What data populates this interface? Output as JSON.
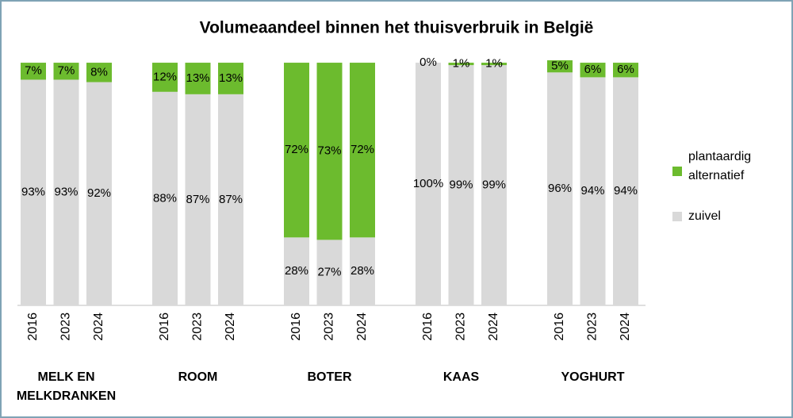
{
  "chart_data": {
    "type": "stacked_bar",
    "title": "Volumeaandeel binnen het thuisverbruik in België",
    "categories": [
      "2016",
      "2023",
      "2024",
      "2016",
      "2023",
      "2024",
      "2016",
      "2023",
      "2024",
      "2016",
      "2023",
      "2024",
      "2016",
      "2023",
      "2024"
    ],
    "groups": [
      "MELK EN MELKDRANKEN",
      "ROOM",
      "BOTER",
      "KAAS",
      "YOGHURT"
    ],
    "series": [
      {
        "name": "zuivel",
        "color": "#d9d9d9",
        "values": [
          93,
          93,
          92,
          88,
          87,
          87,
          28,
          27,
          28,
          100,
          99,
          99,
          96,
          94,
          94
        ],
        "value_labels": [
          "93%",
          "93%",
          "92%",
          "88%",
          "87%",
          "87%",
          "28%",
          "27%",
          "28%",
          "100%",
          "99%",
          "99%",
          "96%",
          "94%",
          "94%"
        ]
      },
      {
        "name": "plantaardig alternatief",
        "color": "#6cbb2e",
        "values": [
          7,
          7,
          8,
          12,
          13,
          13,
          72,
          73,
          72,
          0,
          1,
          1,
          5,
          6,
          6
        ],
        "value_labels": [
          "7%",
          "7%",
          "8%",
          "12%",
          "13%",
          "13%",
          "72%",
          "73%",
          "72%",
          "0%",
          "1%",
          "1%",
          "5%",
          "6%",
          "6%"
        ]
      }
    ]
  }
}
